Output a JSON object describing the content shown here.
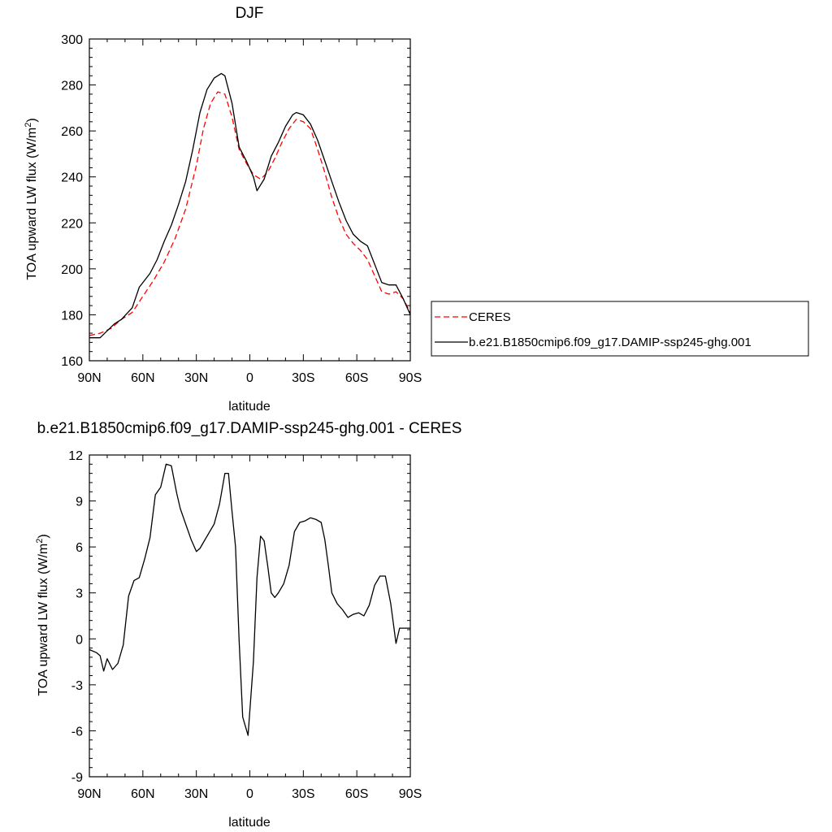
{
  "chart_data": [
    {
      "type": "line",
      "title": "DJF",
      "xlabel": "latitude",
      "ylabel": "TOA upward LW flux (W/m²)",
      "ylabel_prefix": "TOA upward LW flux (W/m",
      "ylabel_sup": "2",
      "ylabel_suffix": ")",
      "xlim": [
        90,
        -90
      ],
      "ylim": [
        160,
        300
      ],
      "xticks": [
        90,
        60,
        30,
        0,
        -30,
        -60,
        -90
      ],
      "xtick_labels": [
        "90N",
        "60N",
        "30N",
        "0",
        "30S",
        "60S",
        "90S"
      ],
      "yticks": [
        160,
        180,
        200,
        220,
        240,
        260,
        280,
        300
      ],
      "ytick_labels": [
        "160",
        "180",
        "200",
        "220",
        "240",
        "260",
        "280",
        "300"
      ],
      "legend": {
        "placement": "right",
        "entries": [
          "CERES",
          "b.e21.B1850cmip6.f09_g17.DAMIP-ssp245-ghg.001"
        ]
      },
      "series": [
        {
          "name": "CERES",
          "color": "#ff0000",
          "dash": "dashed",
          "x": [
            90,
            84,
            78,
            72,
            66,
            60,
            54,
            48,
            42,
            36,
            30,
            26,
            22,
            18,
            14,
            10,
            6,
            2,
            -2,
            -6,
            -10,
            -14,
            -18,
            -22,
            -26,
            -30,
            -34,
            -38,
            -42,
            -46,
            -50,
            -54,
            -58,
            -62,
            -66,
            -70,
            -74,
            -78,
            -82,
            -86,
            -90
          ],
          "values": [
            171,
            172,
            174,
            178,
            181,
            188,
            195,
            203,
            213,
            226,
            245,
            261,
            272,
            277,
            276,
            266,
            252,
            246,
            241,
            239,
            242,
            248,
            255,
            261,
            265,
            264,
            261,
            252,
            242,
            231,
            222,
            215,
            211,
            208,
            204,
            197,
            190,
            189,
            190,
            187,
            181
          ]
        },
        {
          "name": "b.e21.B1850cmip6.f09_g17.DAMIP-ssp245-ghg.001",
          "color": "#000000",
          "dash": "solid",
          "x": [
            90,
            84,
            80,
            76,
            72,
            66,
            62,
            56,
            52,
            48,
            44,
            40,
            36,
            32,
            28,
            24,
            20,
            16,
            14,
            10,
            6,
            2,
            -2,
            -4,
            -8,
            -12,
            -16,
            -20,
            -24,
            -26,
            -30,
            -34,
            -38,
            -42,
            -46,
            -50,
            -54,
            -58,
            -62,
            -66,
            -70,
            -74,
            -78,
            -82,
            -86,
            -90
          ],
          "values": [
            170,
            170,
            173,
            176,
            178,
            183,
            192,
            198,
            204,
            212,
            219,
            228,
            238,
            252,
            268,
            278,
            283,
            285,
            284,
            272,
            253,
            247,
            240,
            234,
            239,
            249,
            255,
            262,
            267,
            268,
            267,
            263,
            256,
            247,
            238,
            229,
            221,
            215,
            212,
            210,
            202,
            194,
            193,
            193,
            187,
            180
          ]
        }
      ]
    },
    {
      "type": "line",
      "title": "b.e21.B1850cmip6.f09_g17.DAMIP-ssp245-ghg.001 - CERES",
      "xlabel": "latitude",
      "ylabel": "TOA upward LW flux (W/m²)",
      "ylabel_prefix": "TOA upward LW flux (W/m",
      "ylabel_sup": "2",
      "ylabel_suffix": ")",
      "xlim": [
        90,
        -90
      ],
      "ylim": [
        -9,
        12
      ],
      "xticks": [
        90,
        60,
        30,
        0,
        -30,
        -60,
        -90
      ],
      "xtick_labels": [
        "90N",
        "60N",
        "30N",
        "0",
        "30S",
        "60S",
        "90S"
      ],
      "yticks": [
        -9,
        -6,
        -3,
        0,
        3,
        6,
        9,
        12
      ],
      "ytick_labels": [
        "-9",
        "-6",
        "-3",
        "0",
        "3",
        "6",
        "9",
        "12"
      ],
      "series": [
        {
          "name": "b.e21.B1850cmip6.f09_g17.DAMIP-ssp245-ghg.001 - CERES",
          "color": "#000000",
          "dash": "solid",
          "x": [
            90,
            86,
            84,
            82,
            80,
            77,
            74,
            71,
            68,
            65,
            62,
            59,
            56,
            53,
            50,
            47,
            44,
            41,
            39,
            36,
            33,
            30,
            28,
            26,
            23,
            20,
            17,
            14,
            12,
            10,
            8,
            6,
            4,
            1,
            -2,
            -4,
            -6,
            -8,
            -10,
            -12,
            -14,
            -16,
            -19,
            -22,
            -25,
            -28,
            -31,
            -34,
            -37,
            -40,
            -42,
            -44,
            -46,
            -49,
            -52,
            -55,
            -58,
            -61,
            -64,
            -67,
            -70,
            -73,
            -76,
            -79,
            -82,
            -84,
            -86,
            -88,
            -90
          ],
          "values": [
            -0.7,
            -0.9,
            -1.1,
            -2.1,
            -1.3,
            -2.0,
            -1.6,
            -0.4,
            2.8,
            3.8,
            4.0,
            5.2,
            6.6,
            9.4,
            9.9,
            11.4,
            11.3,
            9.5,
            8.5,
            7.5,
            6.5,
            5.7,
            5.9,
            6.3,
            6.9,
            7.5,
            8.8,
            10.8,
            10.8,
            8.3,
            6.0,
            -0.1,
            -5.1,
            -6.3,
            -1.5,
            4.0,
            6.7,
            6.4,
            4.8,
            3.0,
            2.7,
            3.0,
            3.6,
            4.8,
            7.0,
            7.6,
            7.7,
            7.9,
            7.8,
            7.6,
            6.5,
            4.8,
            3.0,
            2.3,
            1.9,
            1.4,
            1.6,
            1.7,
            1.5,
            2.2,
            3.5,
            4.1,
            4.1,
            2.3,
            -0.3,
            0.7,
            0.7,
            0.7,
            0.7
          ]
        }
      ]
    }
  ]
}
